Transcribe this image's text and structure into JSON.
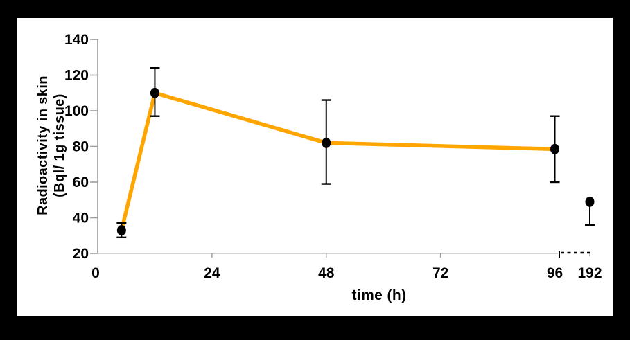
{
  "figure": {
    "background_color": "#000000",
    "panel_color": "#ffffff"
  },
  "chart_data": {
    "type": "line",
    "title": "",
    "xlabel": "time (h)",
    "ylabel_line1": "Radioactivity in skin",
    "ylabel_line2": "(Bql/ 1g tissue)",
    "x_tick_labels": [
      0,
      24,
      48,
      72,
      96,
      192
    ],
    "y_tick_labels": [
      20,
      40,
      60,
      80,
      100,
      120,
      140
    ],
    "ylim": [
      20,
      140
    ],
    "grid": false,
    "legend": "none",
    "axis_break": {
      "between": [
        96,
        192
      ],
      "style": "dashed"
    },
    "colors": {
      "line": "#FFA500",
      "marker": "#000000",
      "error_bar": "#000000",
      "axis": "#9c9c9c",
      "x_axis_line": "#c4c4c4",
      "tick_text": "#000000",
      "break_dashes": "#000000"
    },
    "series": [
      {
        "name": "radioactivity-in-skin",
        "points": [
          {
            "t": 5,
            "value": 33,
            "err_up": 4,
            "err_down": 4,
            "connected": true,
            "after_break": false
          },
          {
            "t": 12,
            "value": 110,
            "err_up": 14,
            "err_down": 13,
            "connected": true,
            "after_break": false
          },
          {
            "t": 48,
            "value": 82,
            "err_up": 24,
            "err_down": 23,
            "connected": true,
            "after_break": false
          },
          {
            "t": 96,
            "value": 78.5,
            "err_up": 18.5,
            "err_down": 18.5,
            "connected": true,
            "after_break": false
          },
          {
            "t": 192,
            "value": 49,
            "err_up": 0,
            "err_down": 13,
            "connected": false,
            "after_break": true
          }
        ]
      }
    ]
  }
}
